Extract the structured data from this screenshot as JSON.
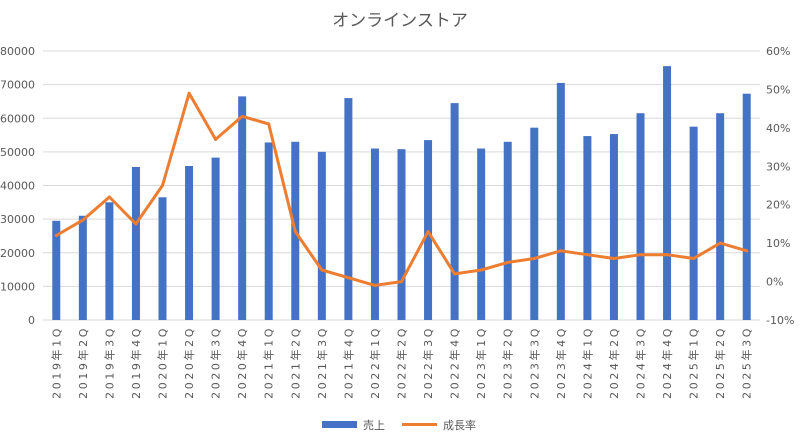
{
  "chart_data": {
    "type": "bar",
    "title": "オンラインストア",
    "categories": [
      "2019年1Q",
      "2019年2Q",
      "2019年3Q",
      "2019年4Q",
      "2020年1Q",
      "2020年2Q",
      "2020年3Q",
      "2020年4Q",
      "2021年1Q",
      "2021年2Q",
      "2021年3Q",
      "2021年4Q",
      "2022年1Q",
      "2022年2Q",
      "2022年3Q",
      "2022年4Q",
      "2023年1Q",
      "2023年2Q",
      "2023年3Q",
      "2023年4Q",
      "2024年1Q",
      "2024年2Q",
      "2024年3Q",
      "2024年4Q",
      "2025年1Q",
      "2025年2Q",
      "2025年3Q"
    ],
    "series": [
      {
        "name": "売上",
        "type": "bar",
        "axis": "left",
        "color": "#4472C4",
        "values": [
          29500,
          31000,
          35000,
          45500,
          36500,
          45800,
          48300,
          66500,
          52800,
          53000,
          50000,
          66000,
          51000,
          50800,
          53500,
          64500,
          51000,
          53000,
          57200,
          70500,
          54700,
          55300,
          61500,
          75500,
          57500,
          61500,
          67300
        ]
      },
      {
        "name": "成長率",
        "type": "line",
        "axis": "right",
        "color": "#ED7D31",
        "values": [
          0.12,
          0.16,
          0.22,
          0.15,
          0.25,
          0.49,
          0.37,
          0.43,
          0.41,
          0.13,
          0.03,
          0.01,
          -0.01,
          0.0,
          0.13,
          0.02,
          0.03,
          0.05,
          0.06,
          0.08,
          0.07,
          0.06,
          0.07,
          0.07,
          0.06,
          0.1,
          0.08
        ]
      }
    ],
    "y_left": {
      "min": 0,
      "max": 80000,
      "step": 10000,
      "ticks": [
        "0",
        "10000",
        "20000",
        "30000",
        "40000",
        "50000",
        "60000",
        "70000",
        "80000"
      ]
    },
    "y_right": {
      "min": -0.1,
      "max": 0.6,
      "step": 0.1,
      "ticks": [
        "-10%",
        "0%",
        "10%",
        "20%",
        "30%",
        "40%",
        "50%",
        "60%"
      ]
    },
    "grid": true,
    "legend_position": "bottom"
  }
}
